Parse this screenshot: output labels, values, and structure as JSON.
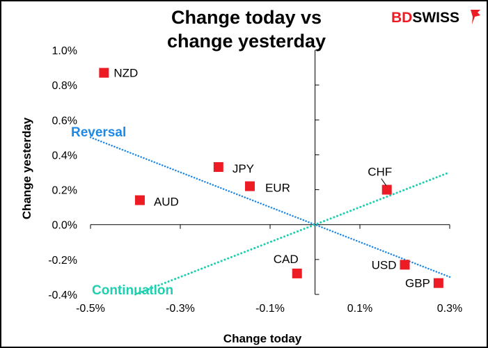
{
  "chart_data": {
    "type": "scatter",
    "title": "Change today vs change yesterday",
    "title_lines": [
      "Change today vs",
      "change yesterday"
    ],
    "xlabel": "Change today",
    "ylabel": "Change yesterday",
    "xlim": [
      -0.5,
      0.3
    ],
    "ylim": [
      -0.4,
      1.0
    ],
    "x_ticks": [
      -0.5,
      -0.3,
      -0.1,
      0.1,
      0.3
    ],
    "x_tick_labels": [
      "-0.5%",
      "-0.3%",
      "-0.1%",
      "0.1%",
      "0.3%"
    ],
    "y_ticks": [
      -0.4,
      -0.2,
      0.0,
      0.2,
      0.4,
      0.6,
      0.8,
      1.0
    ],
    "y_tick_labels": [
      "-0.4%",
      "-0.2%",
      "0.0%",
      "0.2%",
      "0.4%",
      "0.6%",
      "0.8%",
      "1.0%"
    ],
    "grid": false,
    "marker_color": "#ed1c24",
    "points": [
      {
        "label": "NZD",
        "x": -0.47,
        "y": 0.87
      },
      {
        "label": "AUD",
        "x": -0.39,
        "y": 0.14
      },
      {
        "label": "JPY",
        "x": -0.215,
        "y": 0.33
      },
      {
        "label": "EUR",
        "x": -0.145,
        "y": 0.22
      },
      {
        "label": "CAD",
        "x": -0.04,
        "y": -0.28
      },
      {
        "label": "CHF",
        "x": 0.16,
        "y": 0.2
      },
      {
        "label": "USD",
        "x": 0.2,
        "y": -0.23
      },
      {
        "label": "GBP",
        "x": 0.275,
        "y": -0.335
      }
    ],
    "lines": [
      {
        "name": "Reversal",
        "color": "#1e88e5",
        "x": [
          -0.5,
          0.3
        ],
        "y": [
          0.5,
          -0.3
        ]
      },
      {
        "name": "Continuation",
        "color": "#1fcfb0",
        "x": [
          -0.4,
          0.3
        ],
        "y": [
          -0.4,
          0.3
        ]
      }
    ]
  },
  "logo": {
    "text_red": "BD",
    "text_black": "SWISS",
    "color": "#ed1c24"
  }
}
